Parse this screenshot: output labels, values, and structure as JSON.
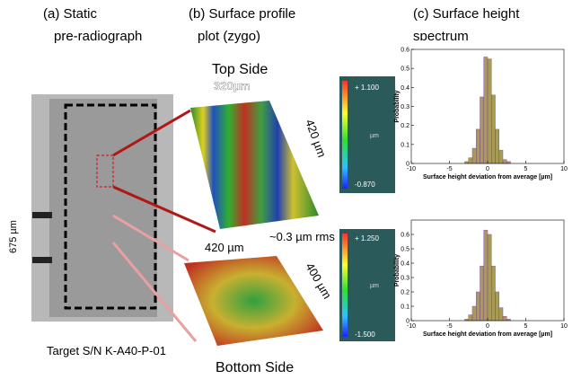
{
  "panels": {
    "a": {
      "title": "(a) Static",
      "subtitle": "pre-radiograph",
      "scale_label": "675 µm",
      "caption": "Target S/N K-A40-P-01"
    },
    "b": {
      "title": "(b) Surface profile",
      "subtitle": "plot (zygo)",
      "top_label": "Top Side",
      "bottom_label": "Bottom Side",
      "top_width": "320µm",
      "top_length": "420 µm",
      "bottom_width": "420 µm",
      "bottom_length": "400 µm",
      "rms": "~0.3 µm rms",
      "top_colorbar": {
        "max": "+ 1.100",
        "unit": "µm",
        "min": "-0.870"
      },
      "bottom_colorbar": {
        "max": "+ 1.250",
        "unit": "µm",
        "min": "-1.500"
      }
    },
    "c": {
      "title": "(c) Surface height",
      "subtitle": "spectrum"
    }
  },
  "histograms": [
    {
      "type": "histogram",
      "ylabel": "Probability",
      "xlabel": "Surface height deviation from average [µm]",
      "bins": [
        -3,
        -2.5,
        -2,
        -1.5,
        -1,
        -0.5,
        0,
        0.5,
        1,
        1.5,
        2,
        2.5,
        3
      ],
      "counts": [
        0.01,
        0.03,
        0.08,
        0.18,
        0.35,
        0.56,
        0.55,
        0.36,
        0.18,
        0.07,
        0.02,
        0.01
      ],
      "color": "#9a8a3a",
      "xlim": [
        -10,
        10
      ],
      "xticks": [
        -10,
        -5,
        0,
        5,
        10
      ],
      "ylim": [
        0,
        0.6
      ],
      "yticks": [
        0,
        0.1,
        0.2,
        0.3,
        0.4,
        0.5,
        0.6
      ]
    },
    {
      "type": "histogram",
      "ylabel": "Probability",
      "xlabel": "Surface height deviation from average [µm]",
      "bins": [
        -3,
        -2.5,
        -2,
        -1.5,
        -1,
        -0.5,
        0,
        0.5,
        1,
        1.5,
        2,
        2.5,
        3
      ],
      "counts": [
        0.01,
        0.04,
        0.1,
        0.2,
        0.38,
        0.63,
        0.6,
        0.38,
        0.2,
        0.09,
        0.03,
        0.01
      ],
      "color": "#9a8a3a",
      "xlim": [
        -10,
        10
      ],
      "xticks": [
        -10,
        -5,
        0,
        5,
        10
      ],
      "ylim": [
        0,
        0.7
      ],
      "yticks": [
        0,
        0.1,
        0.2,
        0.3,
        0.4,
        0.5,
        0.6
      ]
    }
  ]
}
